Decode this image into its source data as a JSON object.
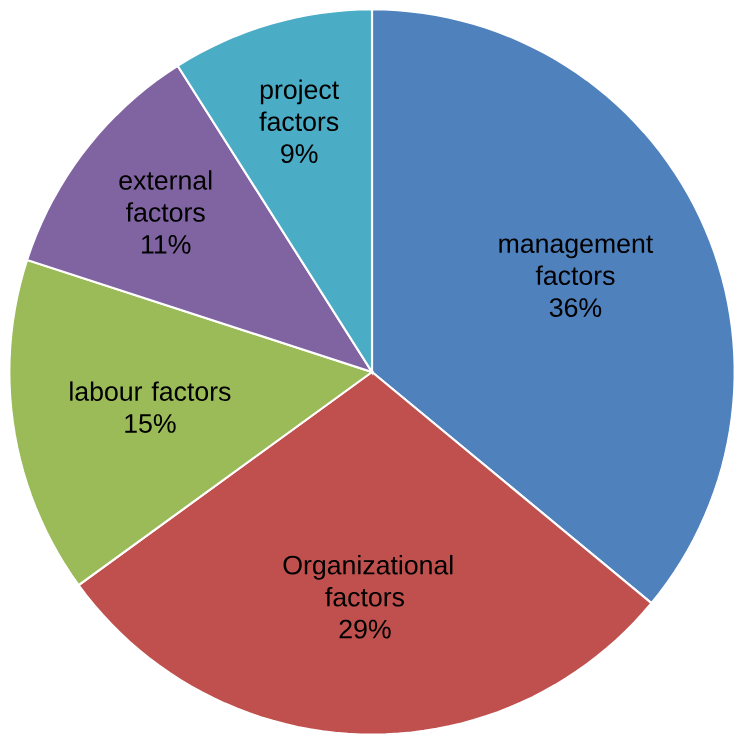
{
  "chart_data": {
    "type": "pie",
    "categories": [
      "management factors",
      "Organizational factors",
      "labour factors",
      "external factors",
      "project factors"
    ],
    "values": [
      36,
      29,
      15,
      11,
      9
    ],
    "value_labels": [
      "36%",
      "29%",
      "15%",
      "11%",
      "9%"
    ],
    "colors": [
      "#4f81bd",
      "#c0504d",
      "#9bbb59",
      "#8064a2",
      "#4bacc6"
    ],
    "legend": false
  }
}
